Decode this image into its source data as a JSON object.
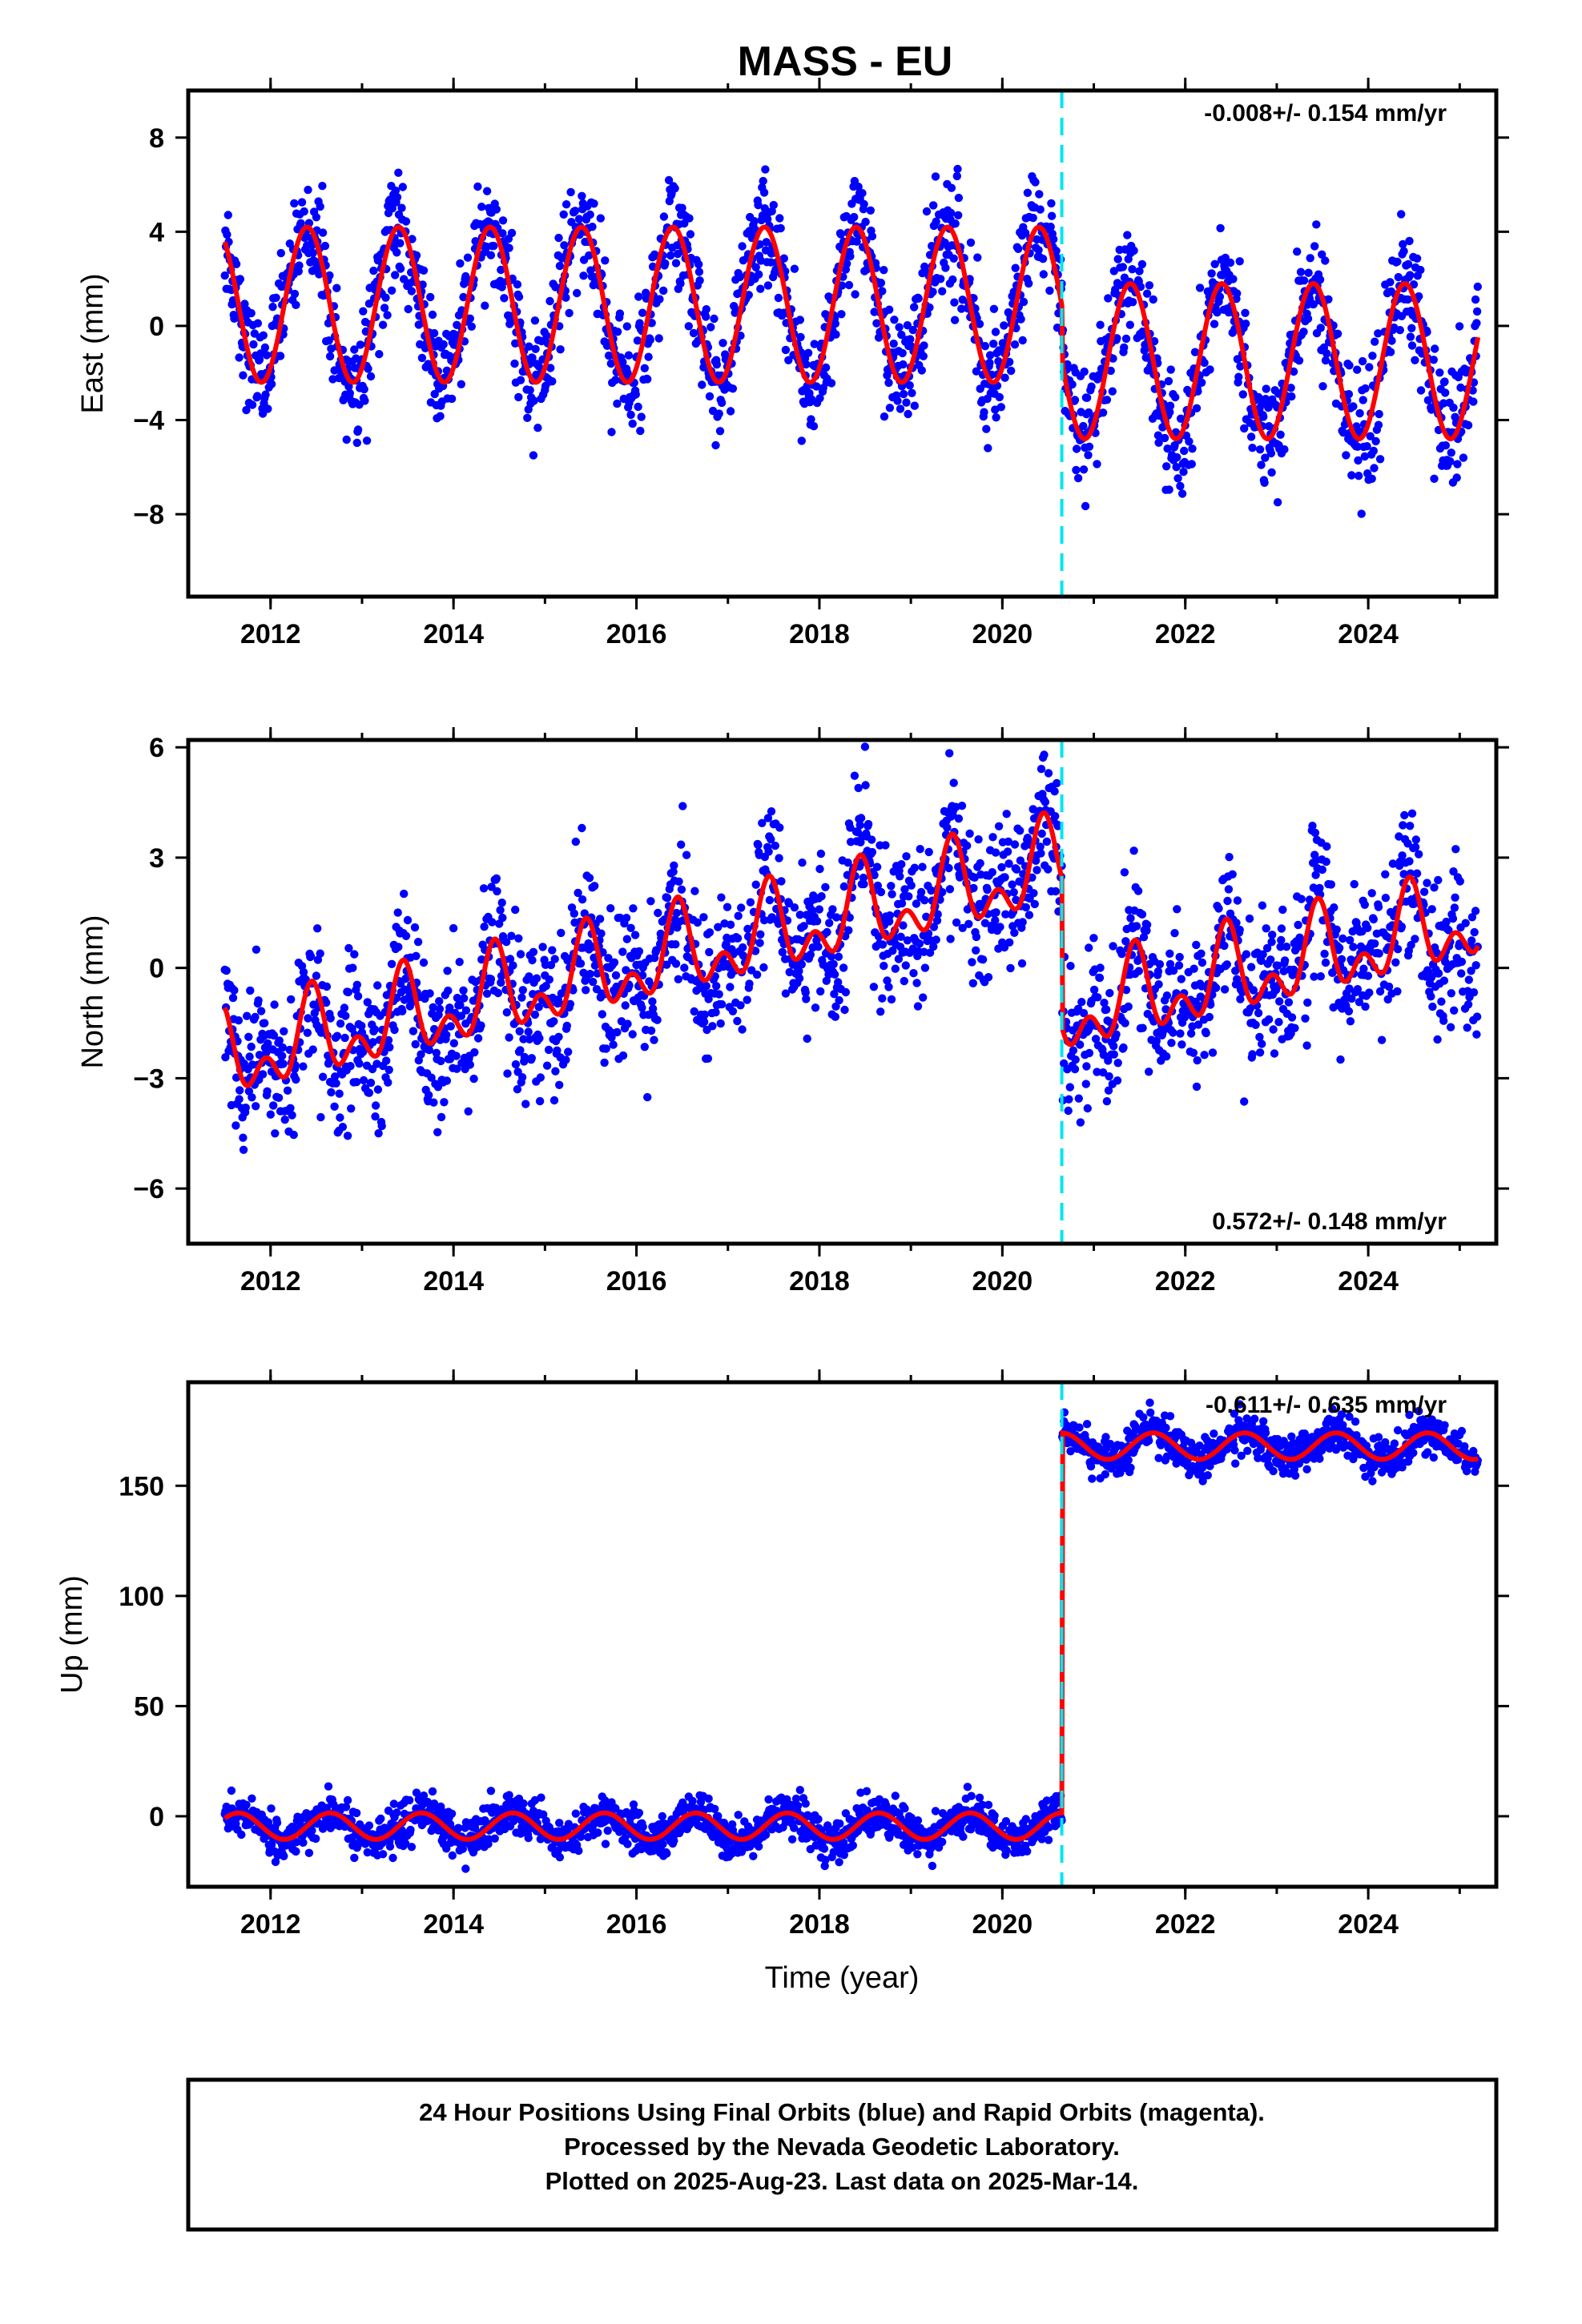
{
  "title": "MASS - EU",
  "colors": {
    "points": "#0000ff",
    "model": "#ff0000",
    "offset_line": "#00e5ee",
    "frame": "#000000"
  },
  "chart_data": [
    {
      "type": "scatter",
      "ylabel": "East (mm)",
      "rate_text": "-0.008+/- 0.154 mm/yr",
      "rate_position": "top-right",
      "xlim": [
        2011.1,
        2025.4
      ],
      "ylim": [
        -11.5,
        10
      ],
      "x_ticks": [
        2012,
        2014,
        2016,
        2018,
        2020,
        2022,
        2024
      ],
      "y_ticks": [
        -8,
        -4,
        0,
        4,
        8
      ],
      "y_tick_labels": [
        "−8",
        "−4",
        "0",
        "4",
        "8"
      ],
      "x_minor_ticks": [
        2012,
        2013,
        2014,
        2015,
        2016,
        2017,
        2018,
        2019,
        2020,
        2021,
        2022,
        2023,
        2024,
        2025
      ],
      "data_range": [
        2011.5,
        2025.2
      ],
      "offset_epoch": 2020.65,
      "model": {
        "segments": [
          {
            "x_start": 2011.5,
            "x_end": 2020.65,
            "mean": 0.9
          },
          {
            "x_start": 2020.65,
            "x_end": 2025.2,
            "mean": -1.5
          }
        ],
        "annual_amplitude": 3.3,
        "annual_peak_phase": 0.4,
        "note": "annual sinusoid; troughs near -2.4 then -4.8, peaks near 4.2 then 1.8"
      },
      "scatter_sd": 1.2
    },
    {
      "type": "scatter",
      "ylabel": "North (mm)",
      "rate_text": "0.572+/- 0.148 mm/yr",
      "rate_position": "bottom-right",
      "xlim": [
        2011.1,
        2025.4
      ],
      "ylim": [
        -7.5,
        6.2
      ],
      "x_ticks": [
        2012,
        2014,
        2016,
        2018,
        2020,
        2022,
        2024
      ],
      "y_ticks": [
        -6,
        -3,
        0,
        3,
        6
      ],
      "y_tick_labels": [
        "−6",
        "−3",
        "0",
        "3",
        "6"
      ],
      "x_minor_ticks": [
        2012,
        2013,
        2014,
        2015,
        2016,
        2017,
        2018,
        2019,
        2020,
        2021,
        2022,
        2023,
        2024,
        2025
      ],
      "data_range": [
        2011.5,
        2025.2
      ],
      "offset_epoch": 2020.65,
      "model": {
        "segments": [
          {
            "x_start": 2011.5,
            "x_end": 2020.65,
            "start_value": -2.5,
            "rate": 0.572
          },
          {
            "x_start": 2020.65,
            "x_end": 2025.2,
            "start_value": -1.3,
            "rate": 0.572
          }
        ],
        "annual_amplitude": 0.9,
        "semiannual_amplitude": 0.7,
        "note": "trend 0.572 mm/yr with annual and semiannual terms; offset at 2020.65"
      },
      "scatter_sd": 1.0
    },
    {
      "type": "scatter",
      "ylabel": "Up (mm)",
      "xlabel": "Time (year)",
      "rate_text": "-0.611+/- 0.635 mm/yr",
      "rate_position": "top-right",
      "xlim": [
        2011.1,
        2025.4
      ],
      "ylim": [
        -32,
        197
      ],
      "x_ticks": [
        2012,
        2014,
        2016,
        2018,
        2020,
        2022,
        2024
      ],
      "y_ticks": [
        0,
        50,
        100,
        150
      ],
      "y_tick_labels": [
        "0",
        "50",
        "100",
        "150"
      ],
      "x_minor_ticks": [
        2012,
        2013,
        2014,
        2015,
        2016,
        2017,
        2018,
        2019,
        2020,
        2021,
        2022,
        2023,
        2024,
        2025
      ],
      "data_range": [
        2011.5,
        2025.2
      ],
      "offset_epoch": 2020.65,
      "model": {
        "segments": [
          {
            "x_start": 2011.5,
            "x_end": 2020.65,
            "mean": -4.5
          },
          {
            "x_start": 2020.65,
            "x_end": 2025.2,
            "mean": 168
          }
        ],
        "annual_amplitude": 6.0,
        "annual_peak_phase": 0.65,
        "offset_mm": 172,
        "note": "step of ~172 mm at 2020.65; annual sinusoid"
      },
      "scatter_sd": 4.5
    }
  ],
  "footer": {
    "line1": "24 Hour Positions Using Final Orbits (blue) and Rapid Orbits (magenta).",
    "line2": "Processed by the Nevada Geodetic Laboratory.",
    "line3": "Plotted on 2025-Aug-23. Last data on 2025-Mar-14."
  }
}
